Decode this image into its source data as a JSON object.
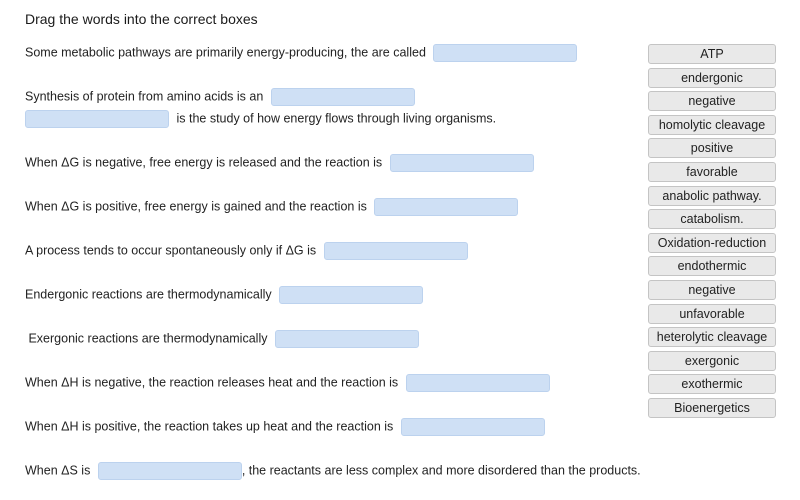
{
  "instructions": "Drag the words into the correct boxes",
  "questions": [
    {
      "before": "Some metabolic pathways are primarily energy-producing, the are called",
      "after": ""
    },
    {
      "before": "Synthesis of protein from amino acids is an",
      "after": ""
    },
    {
      "before": "",
      "after": "is the study of how energy flows through living organisms."
    },
    {
      "before": "When ΔG is negative, free energy is released and the reaction is",
      "after": ""
    },
    {
      "before": "When ΔG is positive, free energy is gained and the reaction is",
      "after": ""
    },
    {
      "before": "A process tends to occur spontaneously only if ΔG is",
      "after": ""
    },
    {
      "before": "Endergonic reactions are thermodynamically",
      "after": ""
    },
    {
      "before": " Exergonic reactions are thermodynamically",
      "after": ""
    },
    {
      "before": "When ΔH is negative, the reaction releases heat and the reaction is",
      "after": ""
    },
    {
      "before": "When ΔH is positive, the reaction takes up heat and the reaction is",
      "after": ""
    },
    {
      "before": "When ΔS is",
      "after": ", the reactants are less complex and more disordered than the products."
    }
  ],
  "word_bank": [
    "ATP",
    "endergonic",
    "negative",
    "homolytic cleavage",
    "positive",
    "favorable",
    "anabolic pathway.",
    "catabolism.",
    "Oxidation-reduction",
    "endothermic",
    "negative",
    "unfavorable",
    "heterolytic cleavage",
    "exergonic",
    "exothermic",
    "Bioenergetics"
  ],
  "colors": {
    "drop_zone": "#cfe0f5",
    "chip_bg": "#e9e9e9",
    "chip_border": "#c4c4c4"
  }
}
